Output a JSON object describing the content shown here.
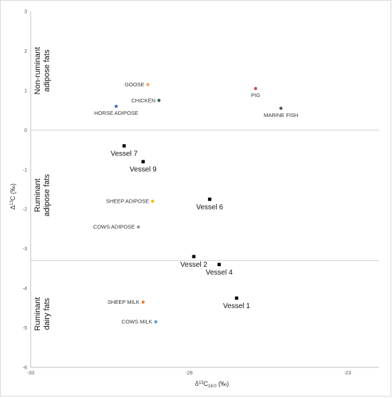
{
  "chart_data": {
    "type": "scatter",
    "x_range": [
      -33,
      -22
    ],
    "y_range": [
      -6,
      3
    ],
    "x_ticks": [
      "-33",
      "-28",
      "-23"
    ],
    "y_ticks": [
      "-6",
      "-5",
      "-4",
      "-3",
      "-2",
      "-1",
      "0",
      "1",
      "2",
      "3"
    ],
    "xlabel": {
      "main": "δ",
      "sup": "13",
      "rest": "C",
      "sub": "16:0",
      "unit": " (‰)"
    },
    "ylabel": {
      "main": "Δ",
      "sup": "13",
      "rest": "C (‰)"
    },
    "region_dividers": [
      0,
      -3.3
    ],
    "regions": [
      {
        "lines": [
          "Non-ruminant",
          "adipose fats"
        ],
        "y_center": 1.5
      },
      {
        "lines": [
          "Ruminant",
          "adipose fats"
        ],
        "y_center": -1.65
      },
      {
        "lines": [
          "Ruminant",
          "dairy fats"
        ],
        "y_center": -4.65
      }
    ],
    "references": [
      {
        "label": "GOOSE",
        "x": -29.3,
        "y": 1.15,
        "color": "#f4a261",
        "anchor": "left"
      },
      {
        "label": "CHICKEN",
        "x": -28.95,
        "y": 0.75,
        "color": "#2e5e4e",
        "anchor": "left"
      },
      {
        "label": "HORSE ADIPOSE",
        "x": -30.3,
        "y": 0.6,
        "color": "#4472c4",
        "anchor": "below"
      },
      {
        "label": "PIG",
        "x": -25.9,
        "y": 1.05,
        "color": "#c0504d",
        "anchor": "below"
      },
      {
        "label": "MARINE FISH",
        "x": -25.1,
        "y": 0.55,
        "color": "#555555",
        "anchor": "below"
      },
      {
        "label": "SHEEP ADIPOSE",
        "x": -29.15,
        "y": -1.8,
        "color": "#f0c000",
        "anchor": "left"
      },
      {
        "label": "COWS ADIPOSE",
        "x": -29.6,
        "y": -2.45,
        "color": "#999999",
        "anchor": "left"
      },
      {
        "label": "SHEEP MILK",
        "x": -29.45,
        "y": -4.35,
        "color": "#ed7d31",
        "anchor": "left"
      },
      {
        "label": "COWS MILK",
        "x": -29.05,
        "y": -4.85,
        "color": "#5b9bd5",
        "anchor": "left"
      }
    ],
    "vessels": [
      {
        "label": "Vessel 7",
        "x": -30.05,
        "y": -0.4
      },
      {
        "label": "Vessel 9",
        "x": -29.45,
        "y": -0.8
      },
      {
        "label": "Vessel 6",
        "x": -27.35,
        "y": -1.75
      },
      {
        "label": "Vessel 2",
        "x": -27.85,
        "y": -3.2
      },
      {
        "label": "Vessel 4",
        "x": -27.05,
        "y": -3.4
      },
      {
        "label": "Vessel 1",
        "x": -26.5,
        "y": -4.25
      }
    ]
  }
}
